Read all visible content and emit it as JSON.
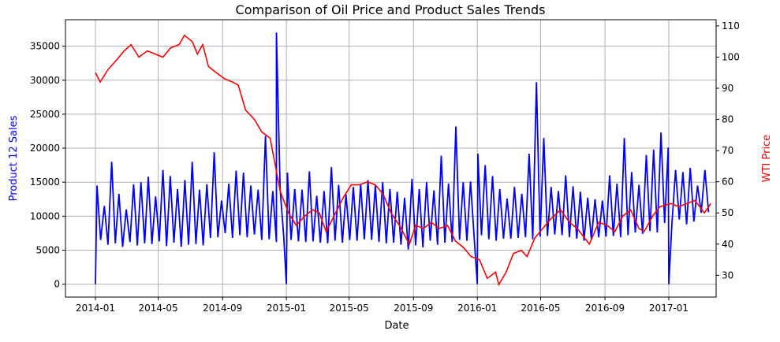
{
  "chart_data": {
    "type": "line",
    "title": "Comparison of Oil Price and Product Sales Trends",
    "xlabel": "Date",
    "ylabel_left": "Product 12 Sales",
    "ylabel_right": "WTI Price",
    "colors": {
      "sales": "#0000ff",
      "oil": "#ff0000",
      "grid": "#b0b0b0"
    },
    "grid": true,
    "x_ticks": [
      "2014-01",
      "2014-05",
      "2014-09",
      "2015-01",
      "2015-05",
      "2015-09",
      "2016-01",
      "2016-05",
      "2016-09",
      "2017-01"
    ],
    "ylim_left": [
      -1900,
      38900
    ],
    "ylim_right": [
      23,
      112
    ],
    "y_ticks_left": [
      0,
      5000,
      10000,
      15000,
      20000,
      25000,
      30000,
      35000
    ],
    "y_ticks_right": [
      30,
      40,
      50,
      60,
      70,
      80,
      90,
      100,
      110
    ],
    "series": [
      {
        "name": "Product 12 Sales",
        "axis": "left",
        "start": "2014-01-04",
        "step_days": 7,
        "values": [
          14500,
          6500,
          11500,
          5800,
          18000,
          6000,
          13300,
          5500,
          11000,
          6200,
          14700,
          5700,
          15000,
          6000,
          15800,
          5900,
          12900,
          6300,
          16800,
          5600,
          15900,
          6100,
          14000,
          5500,
          15300,
          5800,
          18000,
          5900,
          13900,
          5700,
          14700,
          6800,
          19400,
          6900,
          12300,
          7500,
          14800,
          6800,
          16700,
          7200,
          16400,
          6900,
          14500,
          7300,
          13900,
          6500,
          21800,
          6600,
          13700,
          6200,
          14000,
          6900,
          16400,
          6500,
          14000,
          6300,
          13900,
          6200,
          16600,
          6300,
          13000,
          6100,
          13700,
          6000,
          17200,
          6400,
          14600,
          6100,
          13200,
          6500,
          14300,
          6400,
          14700,
          6600,
          15300,
          6500,
          14500,
          6200,
          15000,
          6000,
          14000,
          6100,
          13600,
          5800,
          12700,
          5100,
          15500,
          5700,
          14000,
          5400,
          15000,
          6400,
          13800,
          5800,
          18900,
          6100,
          14800,
          6200,
          23200,
          6500,
          15000,
          6400,
          15100,
          6900,
          19200,
          7200,
          17500,
          6600,
          15900,
          6400,
          14000,
          6700,
          12600,
          6700,
          14300,
          6800,
          13300,
          6900,
          19200,
          6600,
          29700,
          7000,
          21500,
          7100,
          14300,
          7300,
          13700,
          7200,
          16000,
          6900,
          14400,
          6700,
          13600,
          6400,
          12700,
          6600,
          12500,
          6900,
          12300,
          7000,
          16000,
          7100,
          14800,
          6900,
          21500,
          7200,
          16500,
          7600,
          14600,
          7400,
          19000,
          7800,
          19800,
          7600,
          22300,
          9000,
          20100,
          9000,
          16800,
          9500,
          16500,
          8800,
          17100,
          9200,
          14500,
          10500,
          16800,
          10600
        ],
        "extra_points": [
          {
            "date": "2014-01-01",
            "value": 0
          },
          {
            "date": "2014-12-13",
            "value": 37000
          },
          {
            "date": "2015-01-01",
            "value": 0
          },
          {
            "date": "2016-01-01",
            "value": 0
          },
          {
            "date": "2017-01-01",
            "value": 0
          }
        ]
      },
      {
        "name": "WTI Price",
        "axis": "right",
        "points": [
          [
            "2014-01-01",
            95
          ],
          [
            "2014-01-10",
            92
          ],
          [
            "2014-01-25",
            96
          ],
          [
            "2014-02-10",
            99
          ],
          [
            "2014-02-25",
            102
          ],
          [
            "2014-03-10",
            104
          ],
          [
            "2014-03-25",
            100
          ],
          [
            "2014-04-10",
            102
          ],
          [
            "2014-04-25",
            101
          ],
          [
            "2014-05-10",
            100
          ],
          [
            "2014-05-25",
            103
          ],
          [
            "2014-06-10",
            104
          ],
          [
            "2014-06-20",
            107
          ],
          [
            "2014-07-05",
            105
          ],
          [
            "2014-07-15",
            101
          ],
          [
            "2014-07-25",
            104
          ],
          [
            "2014-08-05",
            97
          ],
          [
            "2014-08-20",
            95
          ],
          [
            "2014-09-05",
            93
          ],
          [
            "2014-09-20",
            92
          ],
          [
            "2014-10-01",
            91
          ],
          [
            "2014-10-15",
            83
          ],
          [
            "2014-11-01",
            80
          ],
          [
            "2014-11-15",
            76
          ],
          [
            "2014-12-01",
            74
          ],
          [
            "2014-12-10",
            66
          ],
          [
            "2014-12-20",
            57
          ],
          [
            "2015-01-05",
            50
          ],
          [
            "2015-01-20",
            46
          ],
          [
            "2015-02-05",
            49
          ],
          [
            "2015-02-20",
            51
          ],
          [
            "2015-03-05",
            50
          ],
          [
            "2015-03-18",
            44
          ],
          [
            "2015-04-05",
            50
          ],
          [
            "2015-04-20",
            55
          ],
          [
            "2015-05-05",
            59
          ],
          [
            "2015-05-20",
            59
          ],
          [
            "2015-06-05",
            60
          ],
          [
            "2015-06-20",
            59
          ],
          [
            "2015-07-05",
            56
          ],
          [
            "2015-07-20",
            50
          ],
          [
            "2015-08-05",
            46
          ],
          [
            "2015-08-24",
            40
          ],
          [
            "2015-09-05",
            46
          ],
          [
            "2015-09-20",
            45
          ],
          [
            "2015-10-05",
            47
          ],
          [
            "2015-10-20",
            45
          ],
          [
            "2015-11-05",
            46
          ],
          [
            "2015-11-20",
            41
          ],
          [
            "2015-12-05",
            39
          ],
          [
            "2015-12-20",
            36
          ],
          [
            "2016-01-05",
            35
          ],
          [
            "2016-01-20",
            29
          ],
          [
            "2016-02-05",
            31
          ],
          [
            "2016-02-11",
            27
          ],
          [
            "2016-02-25",
            31
          ],
          [
            "2016-03-10",
            37
          ],
          [
            "2016-03-25",
            38
          ],
          [
            "2016-04-05",
            36
          ],
          [
            "2016-04-20",
            42
          ],
          [
            "2016-05-05",
            45
          ],
          [
            "2016-05-20",
            48
          ],
          [
            "2016-06-08",
            51
          ],
          [
            "2016-06-25",
            47
          ],
          [
            "2016-07-10",
            45
          ],
          [
            "2016-08-02",
            40
          ],
          [
            "2016-08-20",
            47
          ],
          [
            "2016-09-05",
            46
          ],
          [
            "2016-09-20",
            44
          ],
          [
            "2016-10-05",
            49
          ],
          [
            "2016-10-20",
            51
          ],
          [
            "2016-11-05",
            45
          ],
          [
            "2016-11-15",
            44
          ],
          [
            "2016-12-01",
            49
          ],
          [
            "2016-12-15",
            52
          ],
          [
            "2017-01-05",
            53
          ],
          [
            "2017-01-20",
            52
          ],
          [
            "2017-02-05",
            53
          ],
          [
            "2017-02-20",
            54
          ],
          [
            "2017-03-10",
            50
          ],
          [
            "2017-03-22",
            53
          ]
        ]
      }
    ]
  }
}
